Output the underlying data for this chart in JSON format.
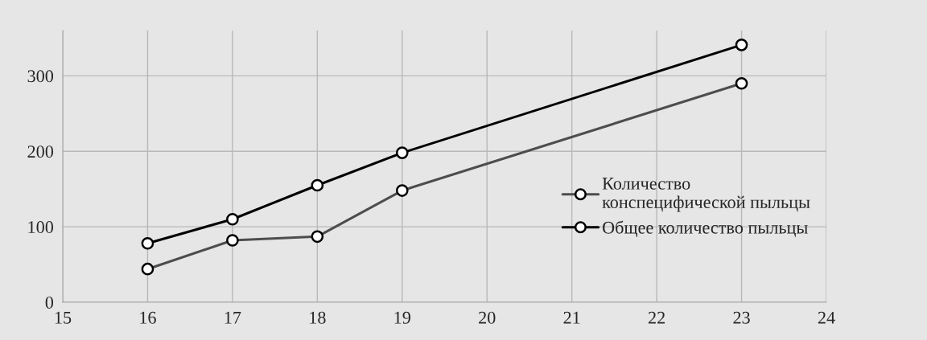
{
  "chart_data": {
    "type": "line",
    "x": [
      16,
      17,
      18,
      19,
      23
    ],
    "series": [
      {
        "name": "Количество\nконспецифической пыльцы",
        "color": "#4d4d4d",
        "values": [
          44,
          82,
          87,
          148,
          290
        ]
      },
      {
        "name": "Общее количество пыльцы",
        "color": "#000000",
        "values": [
          78,
          110,
          155,
          198,
          341
        ]
      }
    ],
    "xlim": [
      15,
      24
    ],
    "xticks": [
      15,
      16,
      17,
      18,
      19,
      20,
      21,
      22,
      23,
      24
    ],
    "ylim": [
      0,
      360
    ],
    "yticks": [
      0,
      100,
      200,
      300
    ],
    "grid": true,
    "legend": "right",
    "marker": "circle",
    "line_style": "solid"
  }
}
